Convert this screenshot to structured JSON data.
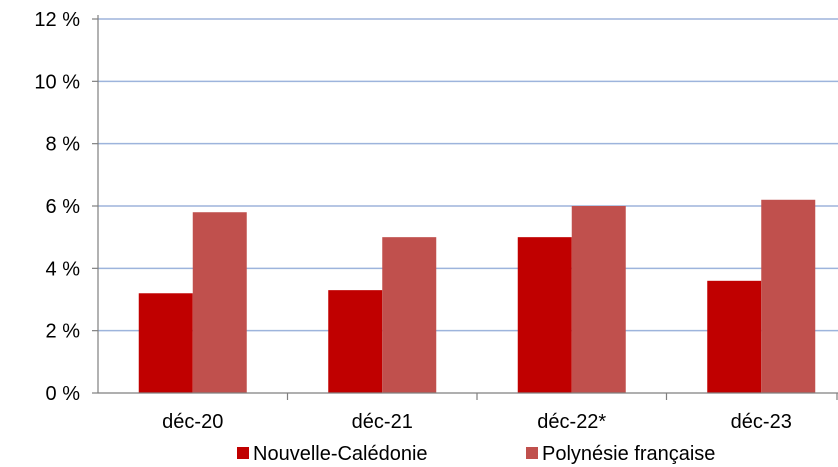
{
  "chart_data": {
    "type": "bar",
    "categories": [
      "déc-20",
      "déc-21",
      "déc-22*",
      "déc-23"
    ],
    "series": [
      {
        "name": "Nouvelle-Calédonie",
        "values": [
          3.2,
          3.3,
          5.0,
          3.6
        ]
      },
      {
        "name": "Polynésie française",
        "values": [
          5.8,
          5.0,
          6.0,
          6.2
        ]
      }
    ],
    "ylim": [
      0,
      12
    ],
    "yticks": [
      0,
      2,
      4,
      6,
      8,
      10,
      12
    ],
    "ytick_labels": [
      "0 %",
      "2 %",
      "4 %",
      "6 %",
      "8 %",
      "10 %",
      "12 %"
    ],
    "grid": true,
    "legend_position": "bottom",
    "colors": {
      "Nouvelle-Calédonie": "#c00000",
      "Polynésie française": "#c0504d",
      "grid": "#9db4dc",
      "axis": "#7f7f7f"
    }
  }
}
